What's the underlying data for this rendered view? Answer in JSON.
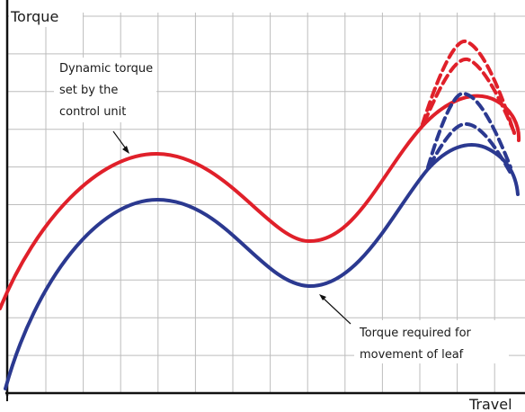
{
  "axes": {
    "y_title": "Torque",
    "x_title": "Travel"
  },
  "annotations": {
    "dynamic_torque": [
      "Dynamic torque",
      "set by the",
      "control unit"
    ],
    "required_torque": [
      "Torque required for",
      "movement of leaf"
    ]
  },
  "colors": {
    "dynamic_curve": "#e0202a",
    "required_curve": "#2b3990",
    "grid": "#bdbdbd",
    "axis": "#111111"
  },
  "legend": "none",
  "grid": true
}
